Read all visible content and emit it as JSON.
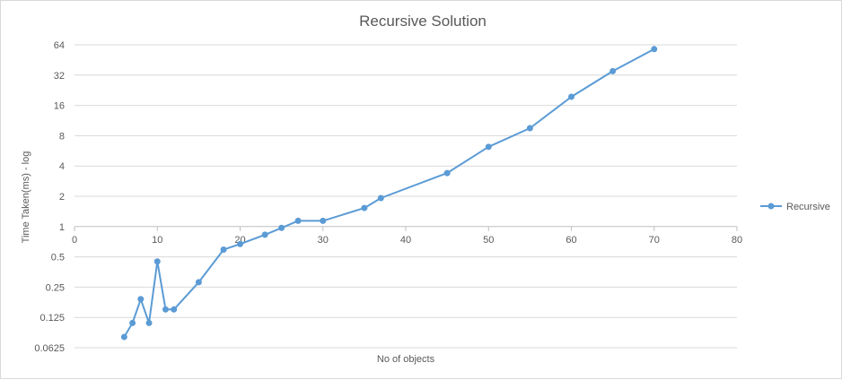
{
  "chart_data": {
    "type": "line",
    "title": "Recursive Solution",
    "xlabel": "No of objects",
    "ylabel": "Time Taken(ms) - log",
    "xlim": [
      0,
      80
    ],
    "x_ticks": [
      0,
      10,
      20,
      30,
      40,
      50,
      60,
      70,
      80
    ],
    "y_scale": "log2",
    "ylim": [
      0.0625,
      64
    ],
    "y_ticks": [
      0.0625,
      0.125,
      0.25,
      0.5,
      1,
      2,
      4,
      8,
      16,
      32,
      64
    ],
    "y_tick_labels": [
      "0.0625",
      "0.125",
      "0.25",
      "0.5",
      "1",
      "2",
      "4",
      "8",
      "16",
      "32",
      "64"
    ],
    "x_axis_crosses_at": 1,
    "grid": true,
    "legend_position": "right",
    "series": [
      {
        "name": "Recursive",
        "color": "#5b9bd5",
        "x": [
          6,
          7,
          8,
          9,
          10,
          11,
          12,
          15,
          18,
          20,
          23,
          25,
          27,
          30,
          35,
          37,
          45,
          50,
          55,
          60,
          65,
          70
        ],
        "y": [
          0.08,
          0.11,
          0.19,
          0.11,
          0.45,
          0.15,
          0.15,
          0.28,
          0.59,
          0.67,
          0.83,
          0.97,
          1.14,
          1.14,
          1.53,
          1.92,
          3.4,
          6.2,
          9.5,
          19.5,
          35,
          58
        ]
      }
    ]
  }
}
